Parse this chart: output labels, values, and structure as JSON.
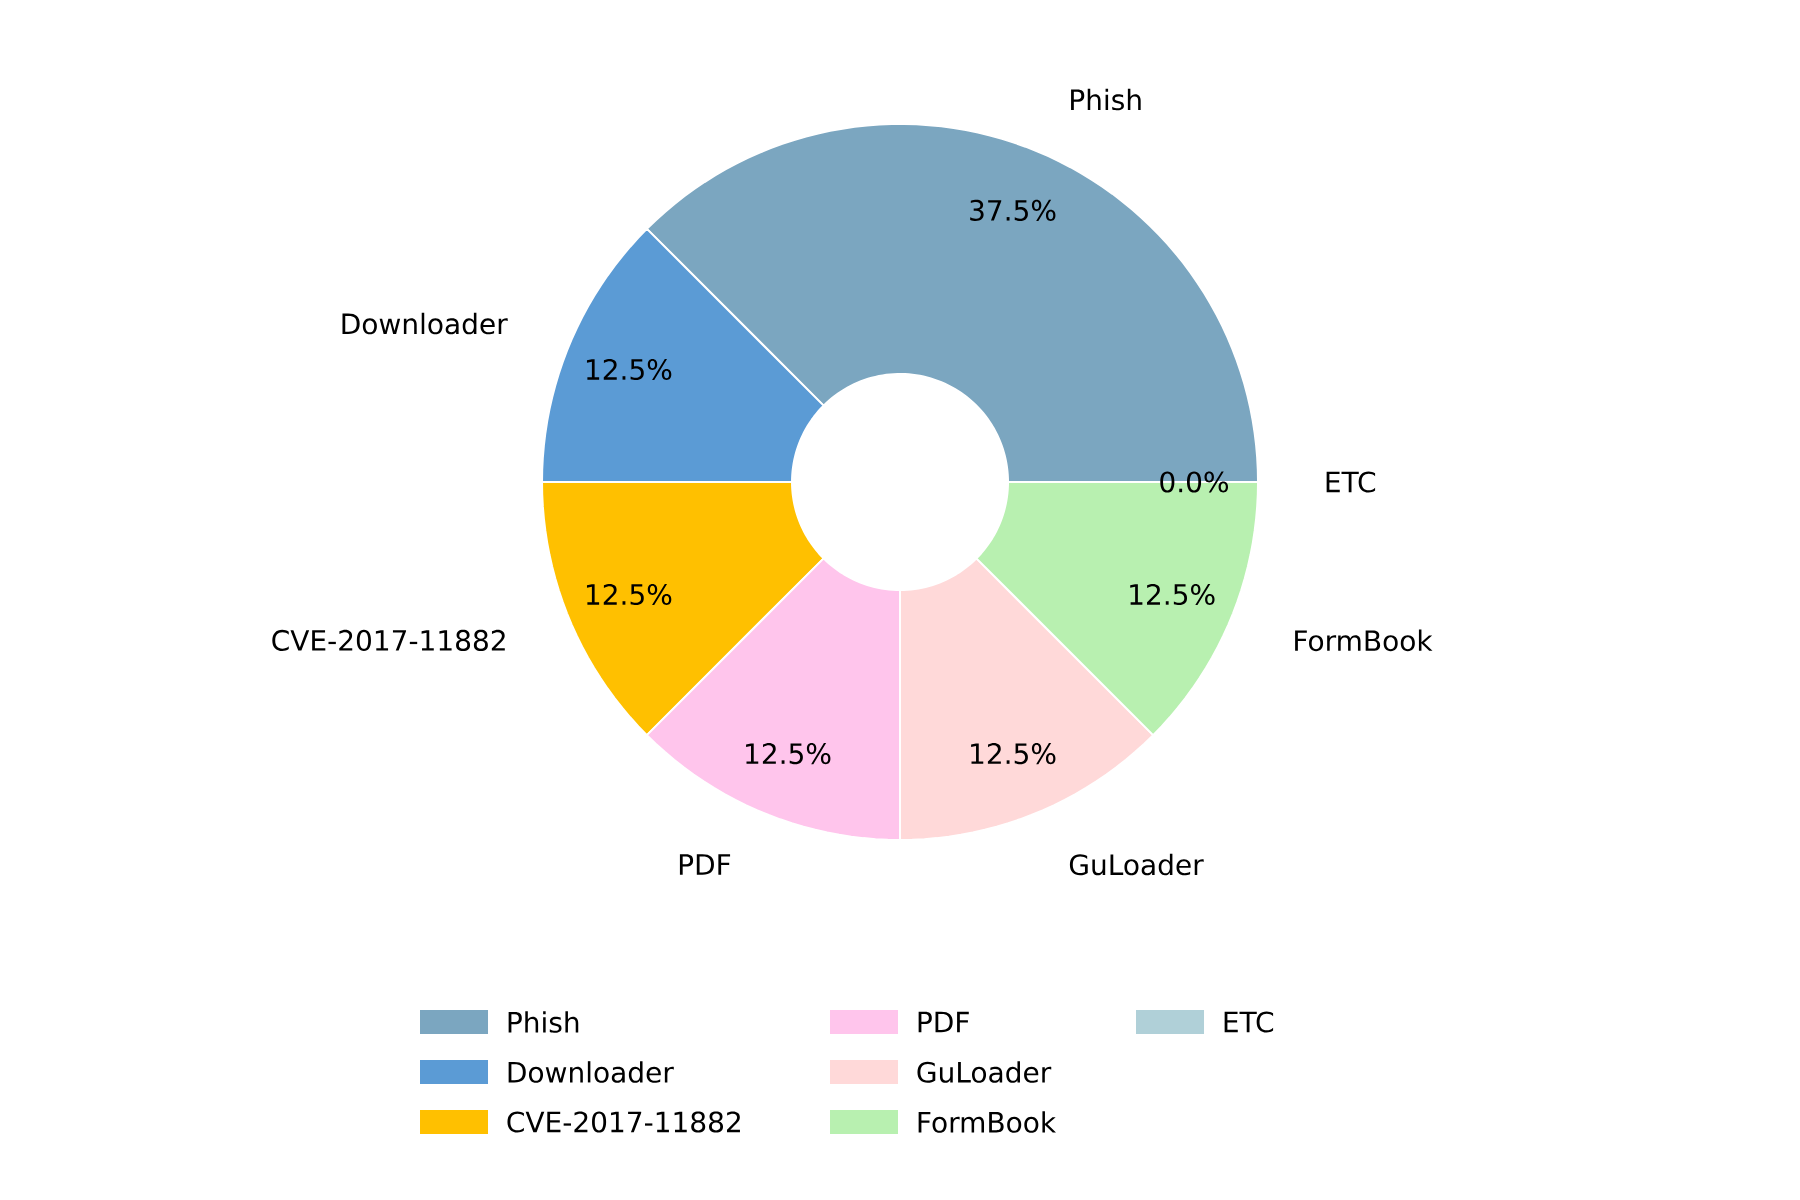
{
  "chart_data": {
    "type": "donut",
    "categories": [
      "Phish",
      "Downloader",
      "CVE-2017-11882",
      "PDF",
      "GuLoader",
      "FormBook",
      "ETC"
    ],
    "values": [
      37.5,
      12.5,
      12.5,
      12.5,
      12.5,
      12.5,
      0
    ],
    "colors": [
      "#7ba6c0",
      "#5b9bd5",
      "#ffc000",
      "#ffc5ec",
      "#ffd9d9",
      "#b8f0b0",
      "#b0d0d8"
    ],
    "value_labels": [
      "37.5%",
      "12.5%",
      "12.5%",
      "12.5%",
      "12.5%",
      "12.5%",
      "0.0%"
    ],
    "legend": "bottom"
  }
}
